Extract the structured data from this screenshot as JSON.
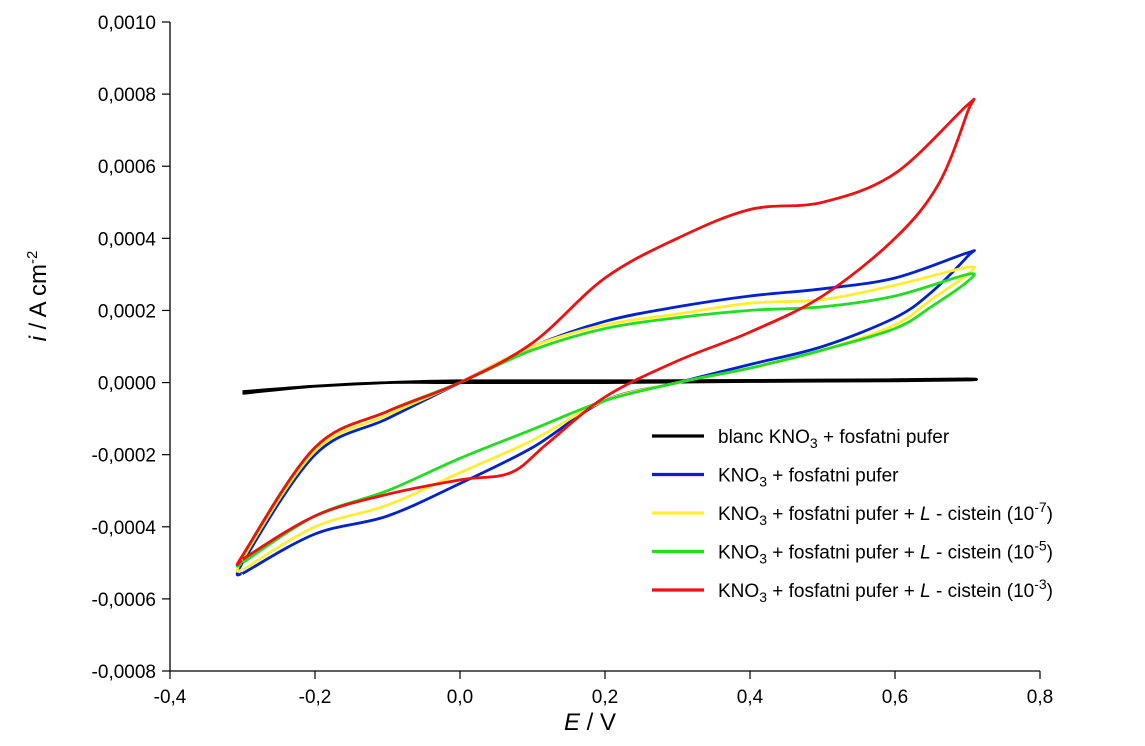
{
  "chart_data": {
    "type": "line",
    "xaxis": {
      "label_italic": "E",
      "label_unit": " / V",
      "range": [
        -0.4,
        0.8
      ],
      "ticks": [
        -0.4,
        -0.2,
        0.0,
        0.2,
        0.4,
        0.6,
        0.8
      ],
      "tick_labels": [
        "-0,4",
        "-0,2",
        "0,0",
        "0,2",
        "0,4",
        "0,6",
        "0,8"
      ]
    },
    "yaxis": {
      "label_italic": "i",
      "label_unit": " / A cm",
      "label_sup": "-2",
      "range": [
        -0.0008,
        0.001
      ],
      "ticks": [
        -0.0008,
        -0.0006,
        -0.0004,
        -0.0002,
        0.0,
        0.0002,
        0.0004,
        0.0006,
        0.0008,
        0.001
      ],
      "tick_labels": [
        "-0,0008",
        "-0,0006",
        "-0,0004",
        "-0,0002",
        "0,0000",
        "0,0002",
        "0,0004",
        "0,0006",
        "0,0008",
        "0,0010"
      ]
    },
    "grid": false,
    "legend_position": "bottom-right",
    "series": [
      {
        "color": "#000000",
        "legend": {
          "t1": "blanc KNO",
          "sub": "3",
          "t2": " + fosfatni pufer",
          "italic": "",
          "t3": "",
          "sup": "",
          "t4": ""
        },
        "points": [
          [
            -0.3,
            -3e-05
          ],
          [
            -0.2,
            -1e-05
          ],
          [
            -0.1,
            0.0
          ],
          [
            0.0,
            0.0
          ],
          [
            0.2,
            0.0
          ],
          [
            0.4,
            3e-06
          ],
          [
            0.6,
            5e-06
          ],
          [
            0.7,
            7e-06
          ],
          [
            0.7,
            1e-05
          ],
          [
            0.6,
            8e-06
          ],
          [
            0.4,
            6e-06
          ],
          [
            0.2,
            5e-06
          ],
          [
            0.0,
            5e-06
          ],
          [
            -0.1,
            0.0
          ],
          [
            -0.2,
            -1e-05
          ],
          [
            -0.3,
            -2.5e-05
          ]
        ]
      },
      {
        "color": "#0022cc",
        "legend": {
          "t1": "KNO",
          "sub": "3",
          "t2": " + fosfatni pufer",
          "italic": "",
          "t3": "",
          "sup": "",
          "t4": ""
        },
        "points": [
          [
            -0.3,
            -0.00053
          ],
          [
            -0.2,
            -0.00042
          ],
          [
            -0.1,
            -0.00037
          ],
          [
            0.0,
            -0.00028
          ],
          [
            0.1,
            -0.00018
          ],
          [
            0.2,
            -5e-05
          ],
          [
            0.3,
            0.0
          ],
          [
            0.4,
            5e-05
          ],
          [
            0.5,
            0.0001
          ],
          [
            0.6,
            0.00018
          ],
          [
            0.65,
            0.00025
          ],
          [
            0.7,
            0.00035
          ],
          [
            0.7,
            0.00036
          ],
          [
            0.6,
            0.00029
          ],
          [
            0.5,
            0.00026
          ],
          [
            0.4,
            0.00024
          ],
          [
            0.3,
            0.00021
          ],
          [
            0.2,
            0.00017
          ],
          [
            0.1,
            0.0001
          ],
          [
            0.0,
            0.0
          ],
          [
            -0.1,
            -0.0001
          ],
          [
            -0.2,
            -0.0002
          ],
          [
            -0.3,
            -0.0005
          ],
          [
            -0.3,
            -0.00053
          ]
        ]
      },
      {
        "color": "#ffee33",
        "legend": {
          "t1": "KNO",
          "sub": "3",
          "t2": " + fosfatni pufer + ",
          "italic": "L",
          "t3": " - cistein (10",
          "sup": "-7",
          "t4": ")"
        },
        "points": [
          [
            -0.3,
            -0.00052
          ],
          [
            -0.2,
            -0.0004
          ],
          [
            -0.1,
            -0.00034
          ],
          [
            0.0,
            -0.00025
          ],
          [
            0.1,
            -0.00016
          ],
          [
            0.2,
            -5e-05
          ],
          [
            0.3,
            0.0
          ],
          [
            0.4,
            4e-05
          ],
          [
            0.5,
            9e-05
          ],
          [
            0.6,
            0.00016
          ],
          [
            0.65,
            0.00023
          ],
          [
            0.7,
            0.0003
          ],
          [
            0.7,
            0.00032
          ],
          [
            0.6,
            0.00027
          ],
          [
            0.5,
            0.00023
          ],
          [
            0.4,
            0.00022
          ],
          [
            0.3,
            0.00019
          ],
          [
            0.2,
            0.00016
          ],
          [
            0.1,
            0.0001
          ],
          [
            0.0,
            0.0
          ],
          [
            -0.1,
            -9e-05
          ],
          [
            -0.2,
            -0.00019
          ],
          [
            -0.3,
            -0.00049
          ],
          [
            -0.3,
            -0.00052
          ]
        ]
      },
      {
        "color": "#22dd22",
        "legend": {
          "t1": "KNO",
          "sub": "3",
          "t2": " + fosfatni pufer + ",
          "italic": "L",
          "t3": " - cistein (10",
          "sup": "-5",
          "t4": ")"
        },
        "points": [
          [
            -0.3,
            -0.0005
          ],
          [
            -0.2,
            -0.00037
          ],
          [
            -0.1,
            -0.0003
          ],
          [
            0.0,
            -0.00021
          ],
          [
            0.1,
            -0.00013
          ],
          [
            0.2,
            -5e-05
          ],
          [
            0.3,
            0.0
          ],
          [
            0.4,
            4e-05
          ],
          [
            0.5,
            9e-05
          ],
          [
            0.6,
            0.00015
          ],
          [
            0.65,
            0.00021
          ],
          [
            0.7,
            0.00028
          ],
          [
            0.7,
            0.0003
          ],
          [
            0.6,
            0.00024
          ],
          [
            0.5,
            0.00021
          ],
          [
            0.4,
            0.0002
          ],
          [
            0.3,
            0.00018
          ],
          [
            0.2,
            0.00015
          ],
          [
            0.1,
            9e-05
          ],
          [
            0.0,
            0.0
          ],
          [
            -0.1,
            -8e-05
          ],
          [
            -0.2,
            -0.00018
          ],
          [
            -0.3,
            -0.00048
          ],
          [
            -0.3,
            -0.0005
          ]
        ]
      },
      {
        "color": "#ee1111",
        "legend": {
          "t1": "KNO",
          "sub": "3",
          "t2": " + fosfatni pufer + ",
          "italic": "L",
          "t3": " - cistein (10",
          "sup": "-3",
          "t4": ")"
        },
        "points": [
          [
            -0.3,
            -0.00049
          ],
          [
            -0.2,
            -0.00037
          ],
          [
            -0.1,
            -0.00031
          ],
          [
            0.0,
            -0.00027
          ],
          [
            0.07,
            -0.00025
          ],
          [
            0.12,
            -0.00017
          ],
          [
            0.2,
            -4e-05
          ],
          [
            0.3,
            6e-05
          ],
          [
            0.4,
            0.00014
          ],
          [
            0.5,
            0.00024
          ],
          [
            0.6,
            0.0004
          ],
          [
            0.66,
            0.00055
          ],
          [
            0.7,
            0.00075
          ],
          [
            0.7,
            0.00077
          ],
          [
            0.6,
            0.00058
          ],
          [
            0.5,
            0.0005
          ],
          [
            0.4,
            0.00048
          ],
          [
            0.3,
            0.0004
          ],
          [
            0.2,
            0.00029
          ],
          [
            0.1,
            0.00011
          ],
          [
            0.0,
            0.0
          ],
          [
            -0.1,
            -8e-05
          ],
          [
            -0.2,
            -0.00018
          ],
          [
            -0.3,
            -0.00048
          ],
          [
            -0.3,
            -0.00049
          ]
        ]
      }
    ]
  }
}
